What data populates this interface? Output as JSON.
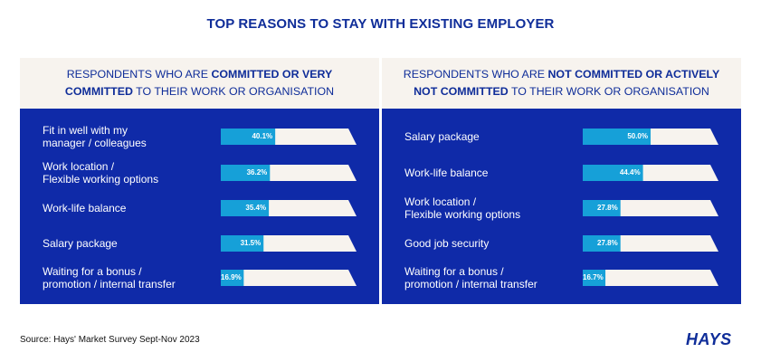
{
  "title": "TOP REASONS TO STAY WITH EXISTING EMPLOYER",
  "colors": {
    "panel_body": "#0f2aa8",
    "panel_head": "#f7f3ee",
    "bar_fill": "#16a0d8",
    "bar_track": "#f7f3ee",
    "title": "#0f2d99"
  },
  "source": "Source: Hays' Market Survey Sept-Nov 2023",
  "logo_text": "HAYS",
  "chart_data": [
    {
      "type": "bar",
      "orientation": "horizontal",
      "header": {
        "before": "RESPONDENTS WHO ARE ",
        "emphasis": "COMMITTED OR VERY COMMITTED",
        "after": " TO THEIR WORK OR ORGANISATION"
      },
      "xlim": [
        0,
        100
      ],
      "categories": [
        "Fit in well with my\nmanager / colleagues",
        "Work location /\nFlexible working options",
        "Work-life balance",
        "Salary package",
        "Waiting for a bonus /\npromotion / internal transfer"
      ],
      "values": [
        40.1,
        36.2,
        35.4,
        31.5,
        16.9
      ],
      "value_labels": [
        "40.1%",
        "36.2%",
        "35.4%",
        "31.5%",
        "16.9%"
      ]
    },
    {
      "type": "bar",
      "orientation": "horizontal",
      "header": {
        "before": "RESPONDENTS WHO ARE ",
        "emphasis": "NOT COMMITTED OR ACTIVELY NOT COMMITTED",
        "after": " TO THEIR WORK OR ORGANISATION"
      },
      "xlim": [
        0,
        100
      ],
      "categories": [
        "Salary package",
        "Work-life balance",
        "Work location /\nFlexible working options",
        "Good job security",
        "Waiting for a bonus /\npromotion / internal transfer"
      ],
      "values": [
        50.0,
        44.4,
        27.8,
        27.8,
        16.7
      ],
      "value_labels": [
        "50.0%",
        "44.4%",
        "27.8%",
        "27.8%",
        "16.7%"
      ]
    }
  ]
}
